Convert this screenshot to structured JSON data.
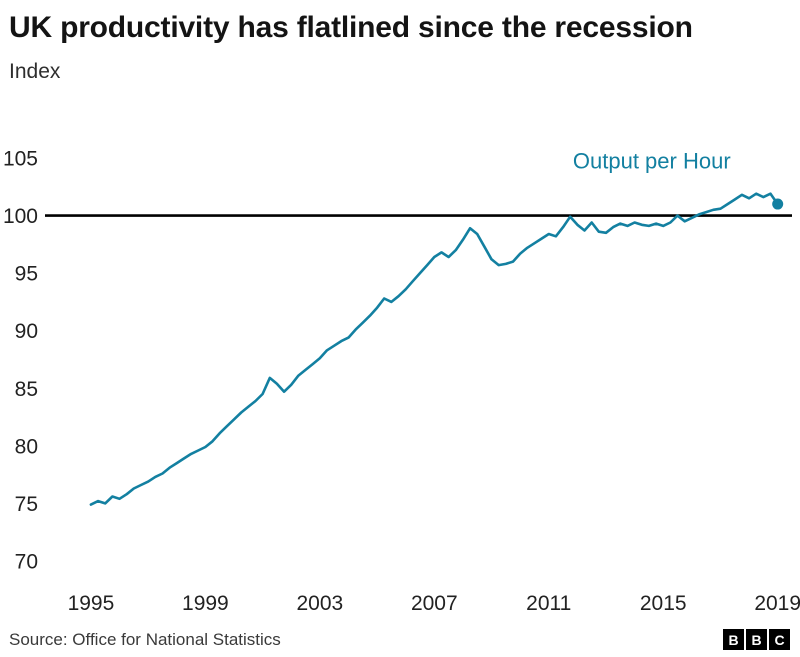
{
  "header": {
    "title": "UK productivity has flatlined since the recession"
  },
  "chart": {
    "unit_label": "Index",
    "series_label": "Output per Hour",
    "accent_color": "#1380A1",
    "reference_line_color": "#000000"
  },
  "chart_data": {
    "type": "line",
    "title": "UK productivity has flatlined since the recession",
    "xlabel": "",
    "ylabel": "Index",
    "y_ticks": [
      70,
      75,
      80,
      85,
      90,
      95,
      100,
      105
    ],
    "x_ticks": [
      1995,
      1999,
      2003,
      2007,
      2011,
      2015,
      2019
    ],
    "ylim": [
      70,
      105
    ],
    "xlim": [
      1993.5,
      2019.5
    ],
    "grid": false,
    "reference_line_y": 100,
    "legend_position": "annotation-top-right",
    "series": [
      {
        "name": "Output per Hour",
        "start_year": 1995,
        "period_years": 0.25,
        "values": [
          74.9,
          75.2,
          75.0,
          75.6,
          75.4,
          75.8,
          76.3,
          76.6,
          76.9,
          77.3,
          77.6,
          78.1,
          78.5,
          78.9,
          79.3,
          79.6,
          79.9,
          80.4,
          81.1,
          81.7,
          82.3,
          82.9,
          83.4,
          83.9,
          84.5,
          85.9,
          85.4,
          84.7,
          85.3,
          86.1,
          86.6,
          87.1,
          87.6,
          88.3,
          88.7,
          89.1,
          89.4,
          90.1,
          90.7,
          91.3,
          92.0,
          92.8,
          92.5,
          93.0,
          93.6,
          94.3,
          95.0,
          95.7,
          96.4,
          96.8,
          96.4,
          97.0,
          97.9,
          98.9,
          98.4,
          97.3,
          96.2,
          95.7,
          95.8,
          96.0,
          96.7,
          97.2,
          97.6,
          98.0,
          98.4,
          98.2,
          99.0,
          99.9,
          99.2,
          98.7,
          99.4,
          98.6,
          98.5,
          99.0,
          99.3,
          99.1,
          99.4,
          99.2,
          99.1,
          99.3,
          99.1,
          99.4,
          100.0,
          99.5,
          99.8,
          100.1,
          100.3,
          100.5,
          100.6,
          101.0,
          101.4,
          101.8,
          101.5,
          101.9,
          101.6,
          101.9,
          101.0
        ]
      }
    ]
  },
  "footer": {
    "source": "Source: Office for National Statistics",
    "logo_letters": [
      "B",
      "B",
      "C"
    ]
  }
}
